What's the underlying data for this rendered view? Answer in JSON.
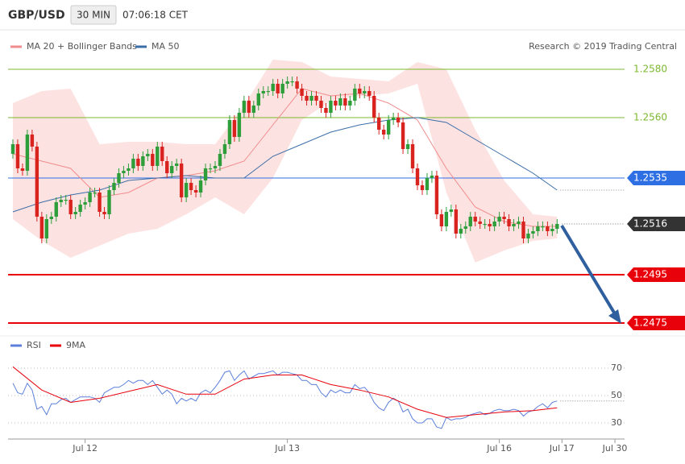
{
  "header": {
    "symbol": "GBP/USD",
    "timeframe": "30 MIN",
    "time": "07:06:18 CET"
  },
  "chart_data": [
    {
      "type": "candlestick",
      "source": "Research © 2019 Trading Central",
      "xlim": [
        -1,
        127
      ],
      "ylim": [
        1.247,
        1.2586
      ],
      "up_color": "#2e9e3a",
      "down_color": "#d9231f",
      "open": [
        1.2545,
        1.2549,
        1.2539,
        1.2538,
        1.2553,
        1.2548,
        1.2519,
        1.251,
        1.2518,
        1.2519,
        1.2525,
        1.2526,
        1.2526,
        1.252,
        1.2521,
        1.2524,
        1.2525,
        1.2529,
        1.2529,
        1.2521,
        1.252,
        1.253,
        1.2533,
        1.2537,
        1.2538,
        1.2539,
        1.2543,
        1.254,
        1.2544,
        1.2545,
        1.254,
        1.2548,
        1.2542,
        1.2537,
        1.254,
        1.2541,
        1.2527,
        1.2533,
        1.253,
        1.2529,
        1.2534,
        1.2539,
        1.2539,
        1.254,
        1.2545,
        1.2549,
        1.2559,
        1.2552,
        1.2562,
        1.2567,
        1.2562,
        1.2565,
        1.257,
        1.2571,
        1.2571,
        1.2574,
        1.257,
        1.2574,
        1.2575,
        1.2575,
        1.2572,
        1.2569,
        1.2567,
        1.2569,
        1.2567,
        1.2564,
        1.2562,
        1.2567,
        1.2565,
        1.2568,
        1.2565,
        1.2567,
        1.2572,
        1.257,
        1.2571,
        1.2569,
        1.256,
        1.2555,
        1.2553,
        1.2559,
        1.256,
        1.2558,
        1.2547,
        1.2549,
        1.2539,
        1.2532,
        1.253,
        1.2535,
        1.2536,
        1.252,
        1.2515,
        1.2521,
        1.2522,
        1.2512,
        1.2514,
        1.2515,
        1.2519,
        1.2517,
        1.2516,
        1.2516,
        1.2515,
        1.2517,
        1.2519,
        1.2518,
        1.2515,
        1.2516,
        1.2517,
        1.251,
        1.2512,
        1.2513,
        1.2515,
        1.2515,
        1.2513,
        1.2514
      ],
      "high": [
        1.2551,
        1.2551,
        1.2541,
        1.2555,
        1.2555,
        1.255,
        1.2521,
        1.252,
        1.2521,
        1.2527,
        1.2528,
        1.2528,
        1.2528,
        1.2523,
        1.2526,
        1.2527,
        1.2531,
        1.2531,
        1.2531,
        1.2523,
        1.2532,
        1.2535,
        1.2539,
        1.254,
        1.2541,
        1.2545,
        1.2545,
        1.2546,
        1.2547,
        1.2547,
        1.255,
        1.255,
        1.2544,
        1.2542,
        1.2543,
        1.2543,
        1.2535,
        1.2535,
        1.2532,
        1.2536,
        1.2541,
        1.2541,
        1.2542,
        1.2547,
        1.2551,
        1.2561,
        1.2561,
        1.2564,
        1.2569,
        1.2569,
        1.2567,
        1.2572,
        1.2573,
        1.2573,
        1.2576,
        1.2576,
        1.2576,
        1.2577,
        1.2577,
        1.2577,
        1.2574,
        1.2571,
        1.2571,
        1.2571,
        1.2569,
        1.2566,
        1.2569,
        1.2569,
        1.257,
        1.257,
        1.2569,
        1.2574,
        1.2574,
        1.2573,
        1.2573,
        1.2571,
        1.2562,
        1.2557,
        1.2561,
        1.2562,
        1.2562,
        1.256,
        1.2551,
        1.2551,
        1.2541,
        1.2534,
        1.2537,
        1.2538,
        1.2538,
        1.2522,
        1.2523,
        1.2524,
        1.2524,
        1.2516,
        1.2517,
        1.2521,
        1.2521,
        1.2519,
        1.2518,
        1.2518,
        1.2519,
        1.2521,
        1.2521,
        1.252,
        1.2518,
        1.2519,
        1.2519,
        1.2514,
        1.2515,
        1.2517,
        1.2517,
        1.2517,
        1.2516,
        1.2518
      ],
      "low": [
        1.2543,
        1.2537,
        1.2536,
        1.2536,
        1.2546,
        1.2517,
        1.2508,
        1.2508,
        1.2516,
        1.2517,
        1.2523,
        1.2524,
        1.2518,
        1.2518,
        1.2519,
        1.2522,
        1.2523,
        1.2527,
        1.2519,
        1.2518,
        1.2518,
        1.2528,
        1.2531,
        1.2535,
        1.2536,
        1.2537,
        1.2538,
        1.2538,
        1.2542,
        1.2538,
        1.2538,
        1.254,
        1.2535,
        1.2535,
        1.2538,
        1.2525,
        1.2525,
        1.2528,
        1.2527,
        1.2527,
        1.2532,
        1.2537,
        1.2537,
        1.2538,
        1.2543,
        1.2547,
        1.255,
        1.255,
        1.256,
        1.256,
        1.256,
        1.2563,
        1.2568,
        1.2569,
        1.2569,
        1.2568,
        1.2568,
        1.2572,
        1.2573,
        1.257,
        1.2567,
        1.2565,
        1.2565,
        1.2565,
        1.2562,
        1.256,
        1.256,
        1.2563,
        1.2563,
        1.2563,
        1.2563,
        1.2565,
        1.2568,
        1.2568,
        1.2567,
        1.2558,
        1.2553,
        1.2551,
        1.2551,
        1.2557,
        1.2556,
        1.2545,
        1.2545,
        1.2537,
        1.253,
        1.2528,
        1.2528,
        1.2533,
        1.2518,
        1.2513,
        1.2513,
        1.2519,
        1.251,
        1.251,
        1.2512,
        1.2513,
        1.2515,
        1.2514,
        1.2514,
        1.2513,
        1.2513,
        1.2515,
        1.2516,
        1.2513,
        1.2513,
        1.2514,
        1.2508,
        1.2508,
        1.251,
        1.2511,
        1.2513,
        1.2511,
        1.2511,
        1.2512
      ],
      "close": [
        1.2549,
        1.2539,
        1.2538,
        1.2553,
        1.2548,
        1.2519,
        1.251,
        1.2518,
        1.2519,
        1.2525,
        1.2526,
        1.2526,
        1.252,
        1.2521,
        1.2524,
        1.2525,
        1.2529,
        1.2529,
        1.2521,
        1.252,
        1.253,
        1.2533,
        1.2537,
        1.2538,
        1.2539,
        1.2543,
        1.254,
        1.2544,
        1.2545,
        1.254,
        1.2548,
        1.2542,
        1.2537,
        1.254,
        1.2541,
        1.2527,
        1.2533,
        1.253,
        1.2529,
        1.2534,
        1.2539,
        1.2539,
        1.254,
        1.2545,
        1.2549,
        1.2559,
        1.2552,
        1.2562,
        1.2567,
        1.2562,
        1.2565,
        1.257,
        1.2571,
        1.2571,
        1.2574,
        1.257,
        1.2574,
        1.2575,
        1.2575,
        1.2572,
        1.2569,
        1.2567,
        1.2569,
        1.2567,
        1.2564,
        1.2562,
        1.2567,
        1.2565,
        1.2568,
        1.2565,
        1.2567,
        1.2572,
        1.257,
        1.2571,
        1.2569,
        1.256,
        1.2555,
        1.2553,
        1.2559,
        1.256,
        1.2558,
        1.2547,
        1.2549,
        1.2539,
        1.2532,
        1.253,
        1.2535,
        1.2536,
        1.252,
        1.2515,
        1.2521,
        1.2522,
        1.2512,
        1.2514,
        1.2515,
        1.2519,
        1.2517,
        1.2516,
        1.2516,
        1.2515,
        1.2517,
        1.2519,
        1.2518,
        1.2515,
        1.2516,
        1.2517,
        1.251,
        1.2512,
        1.2513,
        1.2515,
        1.2515,
        1.2513,
        1.2514,
        1.2516
      ],
      "series": [
        {
          "name": "MA 20 + Bollinger Bands",
          "color": "#f08c8c",
          "band_color": "#fde2e2",
          "x": [
            0,
            6,
            12,
            18,
            24,
            30,
            36,
            42,
            48,
            54,
            60,
            66,
            72,
            78,
            84,
            90,
            96,
            102,
            108,
            113
          ],
          "values": [
            1.2545,
            1.2542,
            1.2539,
            1.2527,
            1.2529,
            1.2535,
            1.2536,
            1.2538,
            1.2542,
            1.2557,
            1.2572,
            1.2569,
            1.257,
            1.2566,
            1.2559,
            1.2539,
            1.2523,
            1.2517,
            1.2515,
            1.2515
          ],
          "upper": [
            1.2566,
            1.2571,
            1.2572,
            1.2549,
            1.255,
            1.255,
            1.2549,
            1.2549,
            1.2565,
            1.2584,
            1.2583,
            1.2577,
            1.2576,
            1.2575,
            1.2583,
            1.258,
            1.2555,
            1.2534,
            1.252,
            1.2519
          ],
          "lower": [
            1.2518,
            1.2509,
            1.2502,
            1.2507,
            1.2512,
            1.2514,
            1.252,
            1.2527,
            1.252,
            1.2535,
            1.2559,
            1.2567,
            1.2569,
            1.257,
            1.2574,
            1.2529,
            1.25,
            1.2505,
            1.2509,
            1.251
          ]
        },
        {
          "name": "MA 50",
          "color": "#3b6ea8",
          "x": [
            0,
            6,
            12,
            18,
            24,
            30,
            36,
            42,
            48,
            54,
            60,
            66,
            72,
            78,
            84,
            90,
            96,
            102,
            108,
            113
          ],
          "values": [
            1.2521,
            1.2525,
            1.2528,
            1.253,
            1.2534,
            1.2535,
            1.2536,
            1.2535,
            1.2535,
            1.2544,
            1.2549,
            1.2554,
            1.2557,
            1.2559,
            1.256,
            1.2558,
            1.2551,
            1.2544,
            1.2537,
            1.253
          ]
        }
      ],
      "levels": [
        {
          "value": 1.258,
          "label": "1.2580",
          "color": "#7cb82f",
          "style": "plain"
        },
        {
          "value": 1.256,
          "label": "1.2560",
          "color": "#7cb82f",
          "style": "plain"
        },
        {
          "value": 1.2535,
          "label": "1.2535",
          "color": "#2f6fe4",
          "style": "box"
        },
        {
          "value": 1.2516,
          "label": "1.2516",
          "color": "#333333",
          "style": "price"
        },
        {
          "value": 1.2495,
          "label": "1.2495",
          "color": "#e8000b",
          "style": "box"
        },
        {
          "value": 1.2475,
          "label": "1.2475",
          "color": "#e8000b",
          "style": "box"
        }
      ]
    },
    {
      "type": "line",
      "xlim": [
        -1,
        127
      ],
      "ylim": [
        20,
        80
      ],
      "yticks": [
        30,
        50,
        70
      ],
      "grid": true,
      "xticks": [
        {
          "value": 15,
          "label": "Jul 12"
        },
        {
          "value": 57,
          "label": "Jul 13"
        },
        {
          "value": 101,
          "label": "Jul 16"
        },
        {
          "value": 114,
          "label": "Jul 17"
        },
        {
          "value": 125,
          "label": "Jul 30"
        }
      ],
      "series": [
        {
          "name": "RSI",
          "color": "#5b7fdb",
          "values": [
            59,
            52,
            51,
            59,
            54,
            40,
            42,
            36,
            44,
            44,
            47,
            48,
            45,
            47,
            49,
            49,
            49,
            48,
            45,
            52,
            54,
            56,
            56,
            58,
            61,
            59,
            61,
            61,
            58,
            61,
            56,
            51,
            54,
            51,
            44,
            48,
            46,
            48,
            46,
            52,
            54,
            52,
            56,
            61,
            67,
            68,
            61,
            65,
            68,
            62,
            64,
            66,
            66,
            67,
            68,
            65,
            67,
            67,
            66,
            65,
            61,
            61,
            58,
            58,
            52,
            49,
            54,
            52,
            54,
            52,
            52,
            58,
            55,
            56,
            52,
            45,
            41,
            39,
            45,
            48,
            46,
            38,
            40,
            33,
            30,
            30,
            33,
            33,
            27,
            26,
            34,
            32,
            33,
            33,
            34,
            36,
            37,
            38,
            36,
            37,
            39,
            40,
            39,
            39,
            40,
            39,
            35,
            38,
            39,
            42,
            44,
            41,
            45,
            46
          ]
        },
        {
          "name": "9MA",
          "color": "#e8000b",
          "x": [
            0,
            6,
            12,
            18,
            24,
            30,
            36,
            42,
            48,
            54,
            60,
            66,
            72,
            78,
            84,
            90,
            96,
            102,
            108,
            113
          ],
          "values": [
            71,
            54,
            45,
            48,
            53,
            58,
            51,
            51,
            62,
            65,
            65,
            58,
            54,
            49,
            40,
            34,
            36,
            38,
            39,
            41
          ]
        }
      ]
    }
  ]
}
